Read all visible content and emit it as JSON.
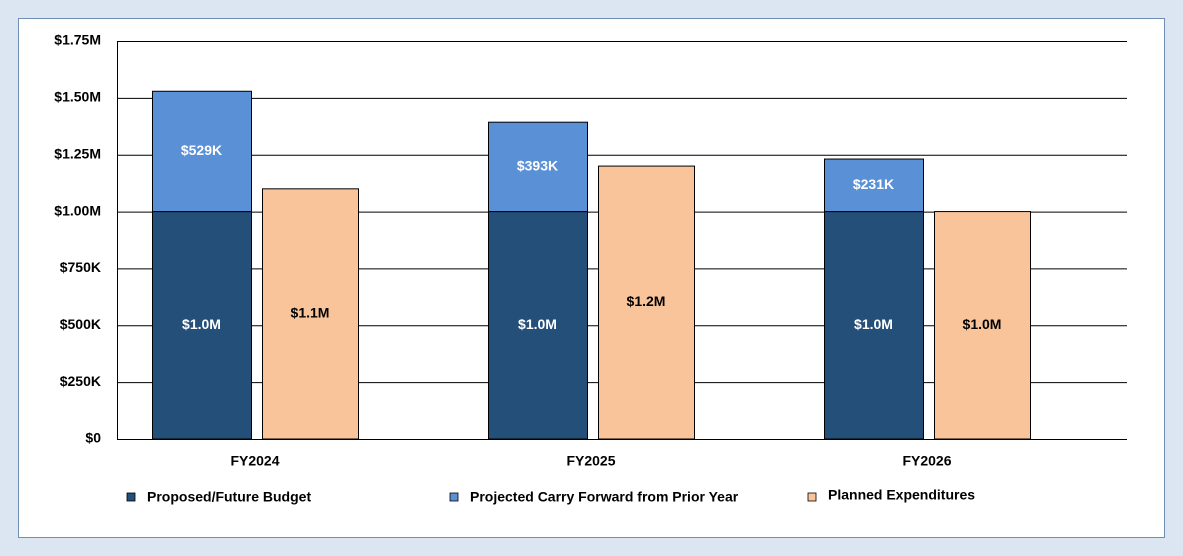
{
  "chart_data": {
    "type": "stacked_bar",
    "categories": [
      "FY2024",
      "FY2025",
      "FY2026"
    ],
    "series": [
      {
        "name": "Proposed/Future Budget",
        "color": "#234f79",
        "stack": "budget",
        "values": [
          1000000,
          1000000,
          1000000
        ],
        "value_labels": [
          "$1.0M",
          "$1.0M",
          "$1.0M"
        ]
      },
      {
        "name": "Projected Carry Forward from Prior Year",
        "color": "#5a90d6",
        "stack": "budget",
        "values": [
          529000,
          393000,
          231000
        ],
        "value_labels": [
          "$529K",
          "$393K",
          "$231K"
        ]
      },
      {
        "name": "Planned Expenditures",
        "color": "#f9c49a",
        "stack": "planned",
        "values": [
          1100000,
          1200000,
          1000000
        ],
        "value_labels": [
          "$1.1M",
          "$1.2M",
          "$1.0M"
        ]
      }
    ],
    "ylim": [
      0,
      1750000
    ],
    "yticks": [
      {
        "value": 0,
        "label": "$0"
      },
      {
        "value": 250000,
        "label": "$250K"
      },
      {
        "value": 500000,
        "label": "$500K"
      },
      {
        "value": 750000,
        "label": "$750K"
      },
      {
        "value": 1000000,
        "label": "$1.00M"
      },
      {
        "value": 1250000,
        "label": "$1.25M"
      },
      {
        "value": 1500000,
        "label": "$1.50M"
      },
      {
        "value": 1750000,
        "label": "$1.75M"
      }
    ],
    "grid": true,
    "legend": "bottom"
  }
}
